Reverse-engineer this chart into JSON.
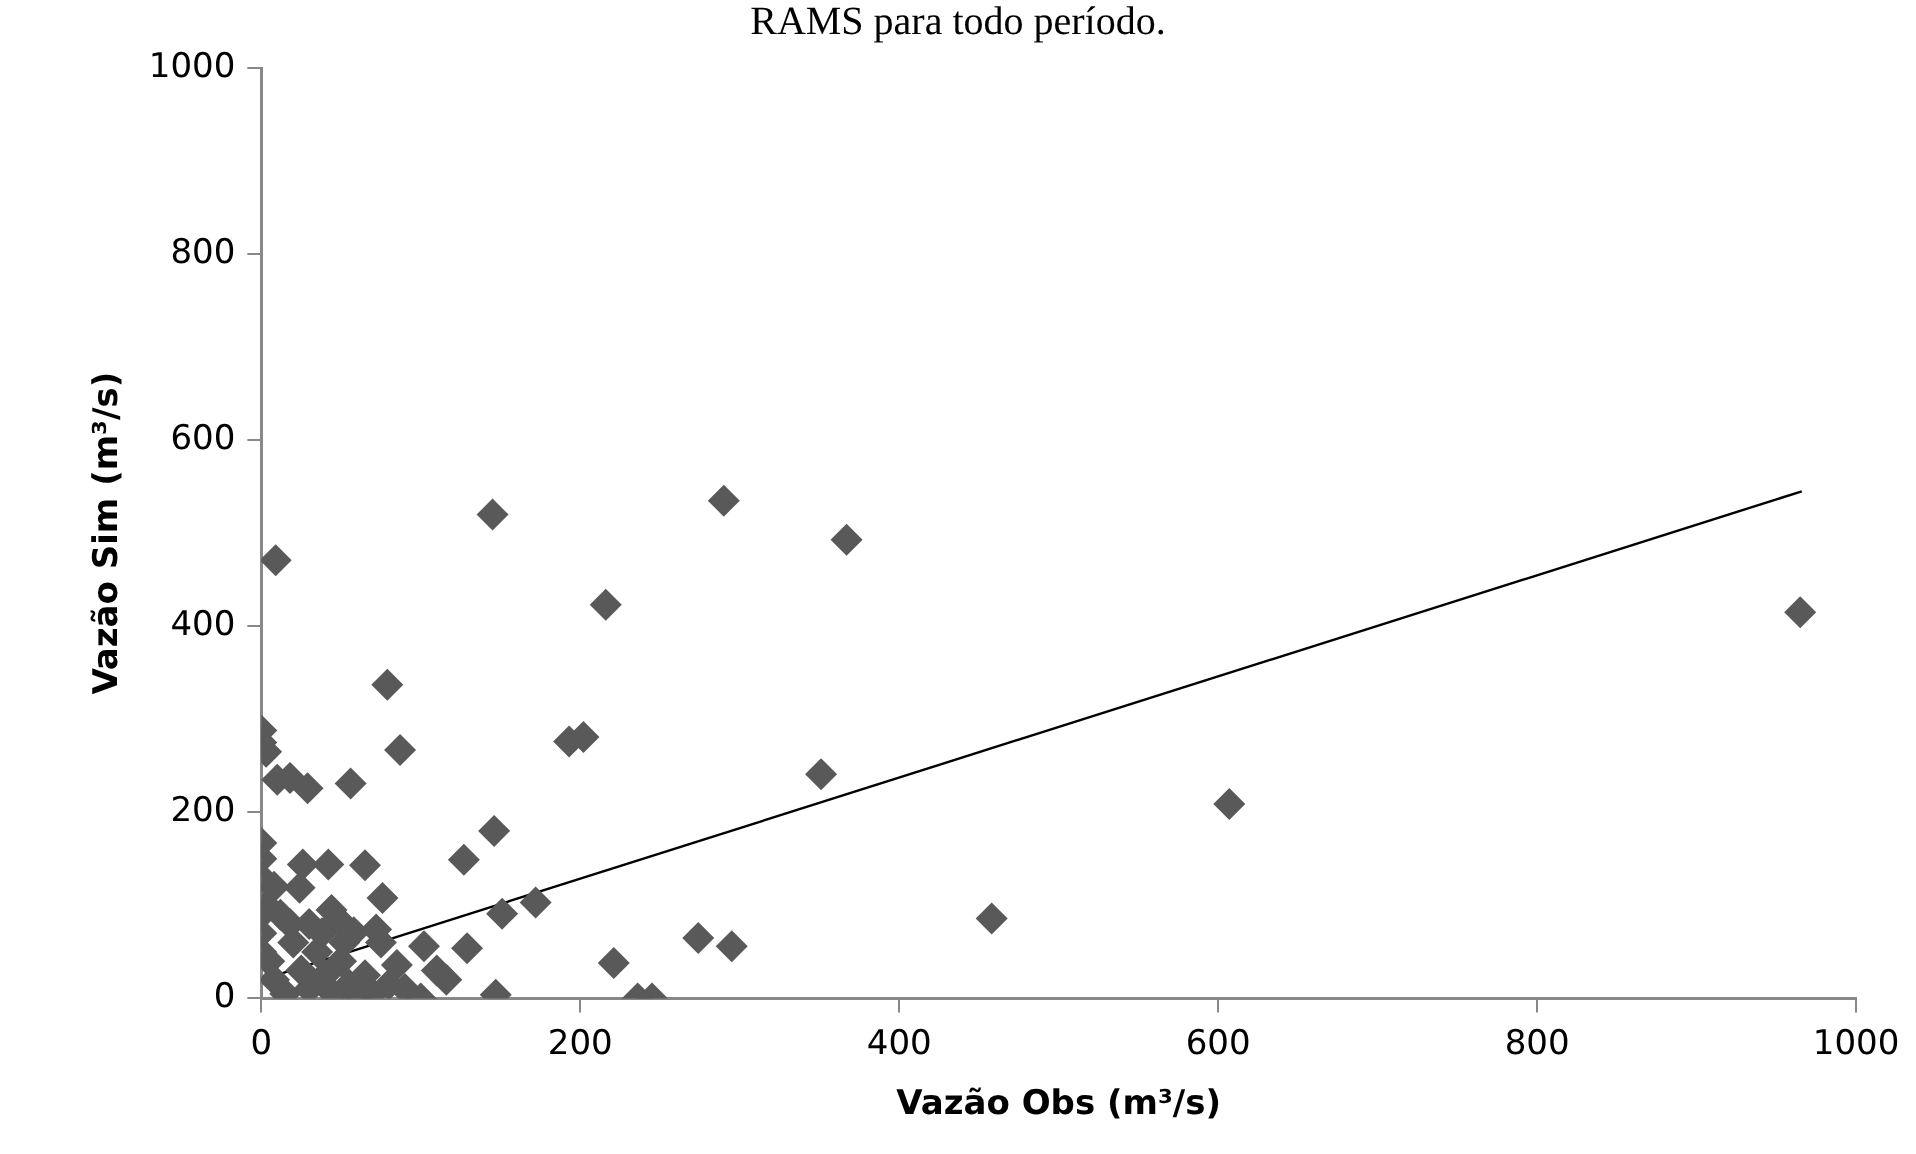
{
  "chart_data": {
    "type": "scatter",
    "xlabel": "Vazão Obs (m³/s)",
    "ylabel": "Vazão Sim (m³/s)",
    "annotations": [
      "RAMS para todo período."
    ],
    "xlim": [
      0,
      1000
    ],
    "xticks": [
      0,
      200,
      400,
      600,
      800,
      1000
    ],
    "ylim": [
      0,
      1000
    ],
    "yticks": [
      0,
      200,
      400,
      600,
      800,
      1000
    ],
    "grid": false,
    "legend": false,
    "marker": "diamond",
    "series": [
      {
        "color": "#595959",
        "x": [
          965,
          290,
          367,
          216,
          193,
          202,
          351,
          607,
          458,
          274,
          295,
          221,
          236,
          245,
          145,
          9,
          0,
          0,
          3,
          18,
          10,
          29,
          56,
          79,
          87,
          0,
          26,
          42,
          65,
          127,
          146,
          76,
          24,
          151,
          172,
          129,
          147,
          44,
          58,
          116,
          85,
          102,
          0,
          0,
          0,
          0,
          0,
          5,
          8,
          15,
          20,
          25,
          30,
          35,
          40,
          45,
          50,
          55,
          60,
          65,
          70,
          12,
          8,
          3,
          18,
          30,
          38,
          48,
          52,
          75,
          90,
          100,
          80,
          72,
          110
        ],
        "values": [
          415,
          535,
          493,
          423,
          276,
          281,
          241,
          209,
          86,
          65,
          56,
          38,
          0,
          0,
          520,
          471,
          288,
          275,
          265,
          237,
          235,
          226,
          231,
          337,
          267,
          167,
          144,
          144,
          143,
          149,
          180,
          108,
          119,
          91,
          103,
          54,
          4,
          95,
          71,
          20,
          36,
          56,
          150,
          130,
          90,
          70,
          50,
          40,
          20,
          5,
          60,
          30,
          10,
          50,
          25,
          5,
          40,
          15,
          0,
          25,
          5,
          90,
          120,
          100,
          80,
          80,
          70,
          85,
          60,
          60,
          10,
          0,
          15,
          74,
          30
        ]
      },
      {
        "type": "line",
        "color": "#000000",
        "marker": "none",
        "x": [
          0,
          966
        ],
        "values": [
          20,
          545
        ]
      }
    ]
  }
}
